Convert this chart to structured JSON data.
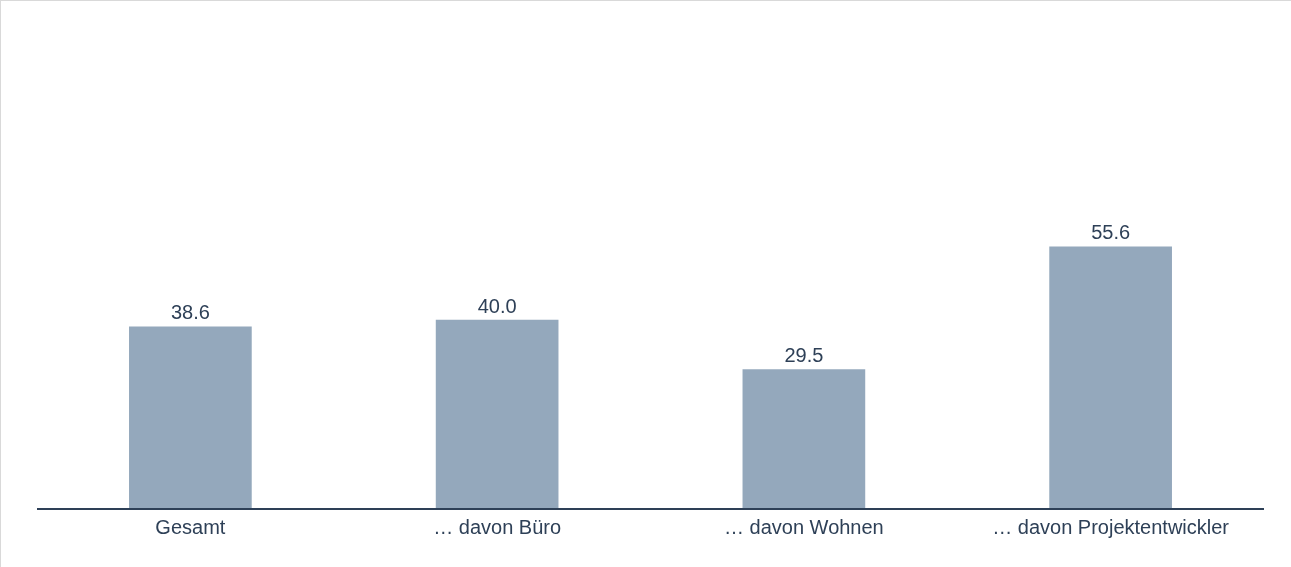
{
  "chart_data": {
    "type": "bar",
    "categories": [
      "Gesamt",
      "… davon Büro",
      "… davon Wohnen",
      "… davon Projektentwickler"
    ],
    "values": [
      38.6,
      40.0,
      29.5,
      55.6
    ],
    "value_labels": [
      "38.6",
      "40.0",
      "29.5",
      "55.6"
    ],
    "color": "#94a8bc"
  }
}
